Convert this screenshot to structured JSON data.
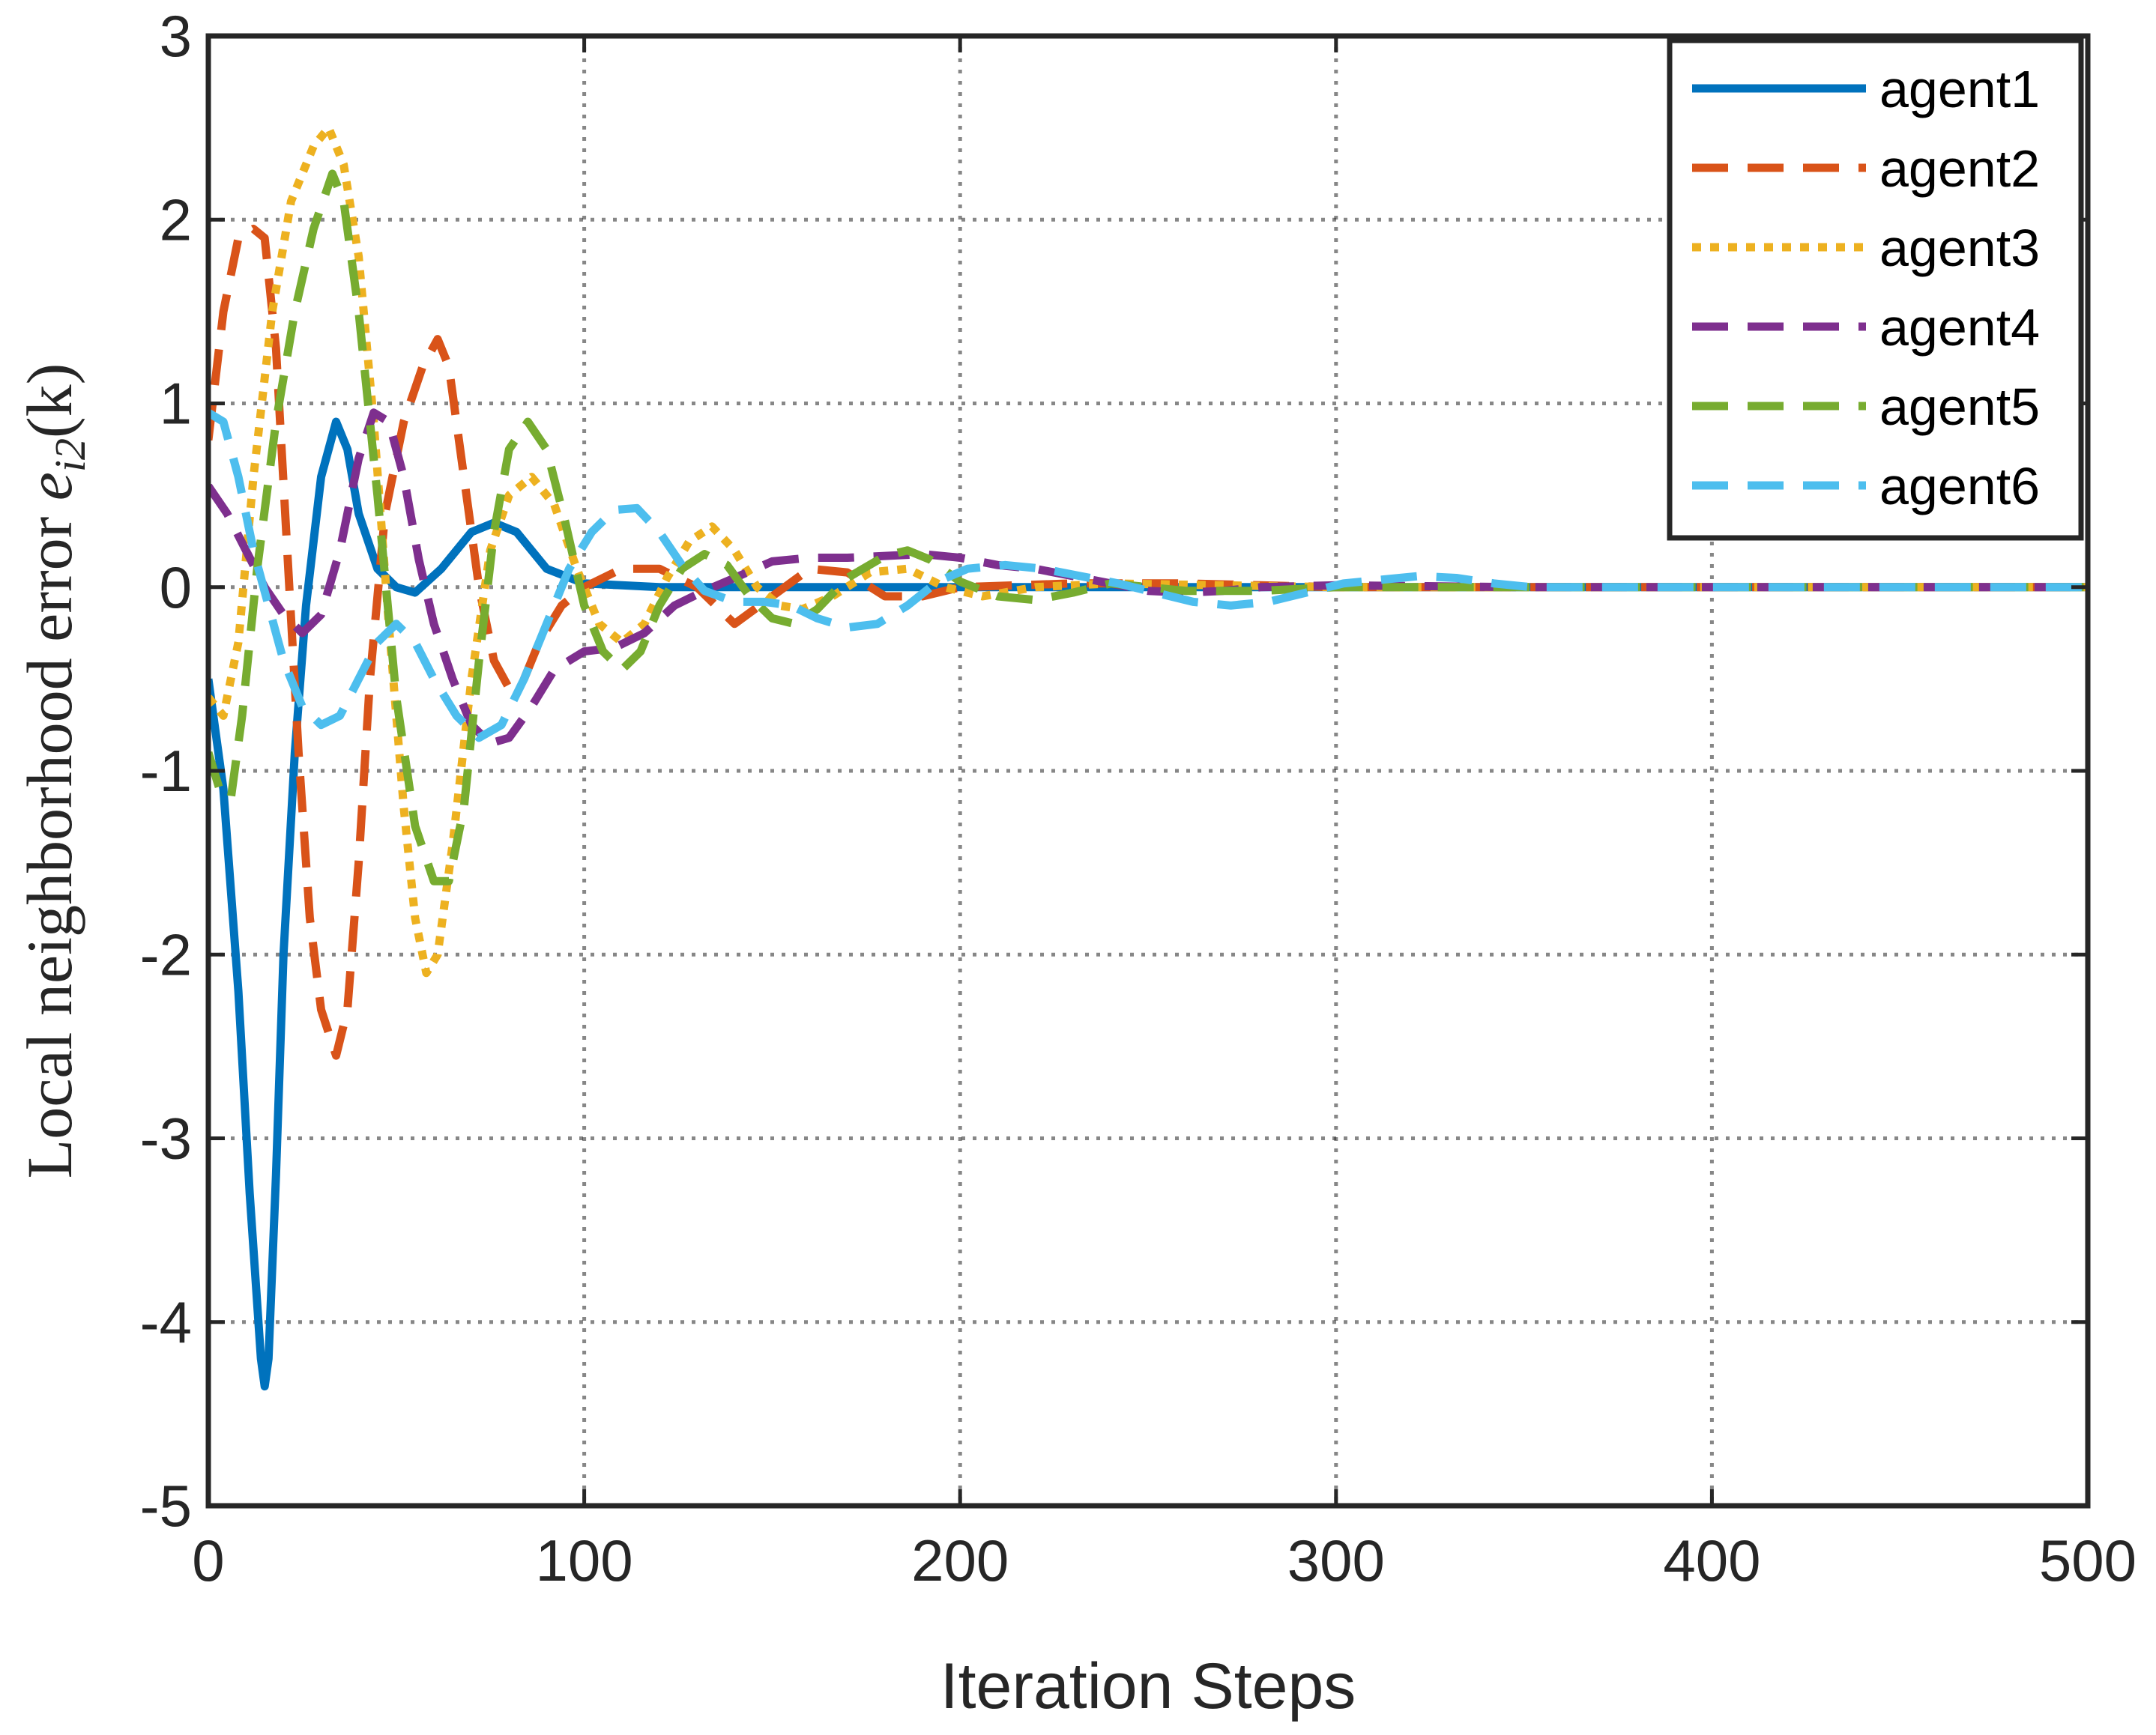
{
  "chart_data": {
    "type": "line",
    "title": "",
    "xlabel": "Iteration Steps",
    "ylabel": {
      "prefix": "Local neighborhood error ",
      "math": "e",
      "subscript": "i2",
      "suffix": "(k)"
    },
    "xlim": [
      0,
      500
    ],
    "ylim": [
      -5,
      3
    ],
    "xticks": [
      0,
      100,
      200,
      300,
      400,
      500
    ],
    "yticks": [
      3,
      2,
      1,
      0,
      -1,
      -2,
      -3,
      -4,
      -5
    ],
    "grid": true,
    "legend_position": "top-right",
    "series": [
      {
        "name": "agent1",
        "color": "#0072BD",
        "style": "solid",
        "points": [
          [
            0,
            -0.5
          ],
          [
            4,
            -1.1
          ],
          [
            8,
            -2.2
          ],
          [
            11,
            -3.3
          ],
          [
            14,
            -4.2
          ],
          [
            15,
            -4.35
          ],
          [
            16,
            -4.2
          ],
          [
            18,
            -3.2
          ],
          [
            20,
            -2.0
          ],
          [
            23,
            -0.9
          ],
          [
            26,
            -0.1
          ],
          [
            30,
            0.6
          ],
          [
            34,
            0.9
          ],
          [
            37,
            0.75
          ],
          [
            40,
            0.4
          ],
          [
            45,
            0.1
          ],
          [
            50,
            0.0
          ],
          [
            55,
            -0.03
          ],
          [
            62,
            0.1
          ],
          [
            70,
            0.3
          ],
          [
            76,
            0.35
          ],
          [
            82,
            0.3
          ],
          [
            90,
            0.1
          ],
          [
            100,
            0.02
          ],
          [
            120,
            0.0
          ],
          [
            160,
            0.0
          ],
          [
            200,
            0.0
          ],
          [
            240,
            0.0
          ],
          [
            300,
            0.0
          ],
          [
            400,
            0.0
          ],
          [
            500,
            0.0
          ]
        ]
      },
      {
        "name": "agent2",
        "color": "#D95319",
        "style": "dashed",
        "points": [
          [
            0,
            0.8
          ],
          [
            4,
            1.5
          ],
          [
            8,
            1.9
          ],
          [
            12,
            1.95
          ],
          [
            15,
            1.9
          ],
          [
            18,
            1.3
          ],
          [
            21,
            0.2
          ],
          [
            24,
            -0.9
          ],
          [
            27,
            -1.8
          ],
          [
            30,
            -2.3
          ],
          [
            34,
            -2.55
          ],
          [
            37,
            -2.3
          ],
          [
            40,
            -1.5
          ],
          [
            43,
            -0.5
          ],
          [
            47,
            0.4
          ],
          [
            52,
            0.9
          ],
          [
            57,
            1.2
          ],
          [
            61,
            1.35
          ],
          [
            64,
            1.2
          ],
          [
            68,
            0.6
          ],
          [
            72,
            0.0
          ],
          [
            76,
            -0.4
          ],
          [
            80,
            -0.55
          ],
          [
            84,
            -0.5
          ],
          [
            88,
            -0.3
          ],
          [
            94,
            -0.1
          ],
          [
            100,
            0.0
          ],
          [
            110,
            0.1
          ],
          [
            120,
            0.1
          ],
          [
            130,
            0.0
          ],
          [
            140,
            -0.2
          ],
          [
            150,
            -0.05
          ],
          [
            160,
            0.1
          ],
          [
            170,
            0.08
          ],
          [
            180,
            -0.05
          ],
          [
            190,
            -0.05
          ],
          [
            200,
            0.0
          ],
          [
            230,
            0.02
          ],
          [
            260,
            0.02
          ],
          [
            300,
            0.0
          ],
          [
            400,
            0.0
          ],
          [
            500,
            0.0
          ]
        ]
      },
      {
        "name": "agent3",
        "color": "#EDB120",
        "style": "dotted",
        "points": [
          [
            0,
            -0.6
          ],
          [
            4,
            -0.7
          ],
          [
            8,
            -0.3
          ],
          [
            12,
            0.6
          ],
          [
            17,
            1.5
          ],
          [
            22,
            2.1
          ],
          [
            28,
            2.4
          ],
          [
            32,
            2.5
          ],
          [
            36,
            2.3
          ],
          [
            40,
            1.8
          ],
          [
            44,
            0.9
          ],
          [
            48,
            -0.2
          ],
          [
            52,
            -1.2
          ],
          [
            55,
            -1.8
          ],
          [
            58,
            -2.1
          ],
          [
            61,
            -2.0
          ],
          [
            65,
            -1.4
          ],
          [
            70,
            -0.5
          ],
          [
            75,
            0.2
          ],
          [
            80,
            0.5
          ],
          [
            86,
            0.6
          ],
          [
            92,
            0.45
          ],
          [
            98,
            0.1
          ],
          [
            104,
            -0.2
          ],
          [
            110,
            -0.3
          ],
          [
            116,
            -0.2
          ],
          [
            122,
            0.05
          ],
          [
            128,
            0.25
          ],
          [
            134,
            0.33
          ],
          [
            140,
            0.2
          ],
          [
            146,
            0.0
          ],
          [
            152,
            -0.1
          ],
          [
            158,
            -0.12
          ],
          [
            166,
            -0.05
          ],
          [
            176,
            0.08
          ],
          [
            186,
            0.1
          ],
          [
            196,
            0.0
          ],
          [
            206,
            -0.05
          ],
          [
            220,
            0.0
          ],
          [
            240,
            0.02
          ],
          [
            300,
            0.0
          ],
          [
            400,
            0.0
          ],
          [
            500,
            0.0
          ]
        ]
      },
      {
        "name": "agent4",
        "color": "#7E2F8E",
        "style": "dashed",
        "points": [
          [
            0,
            0.55
          ],
          [
            5,
            0.4
          ],
          [
            10,
            0.2
          ],
          [
            15,
            0.0
          ],
          [
            20,
            -0.15
          ],
          [
            25,
            -0.25
          ],
          [
            30,
            -0.15
          ],
          [
            35,
            0.2
          ],
          [
            40,
            0.7
          ],
          [
            44,
            0.95
          ],
          [
            48,
            0.9
          ],
          [
            52,
            0.6
          ],
          [
            56,
            0.15
          ],
          [
            60,
            -0.2
          ],
          [
            65,
            -0.5
          ],
          [
            70,
            -0.75
          ],
          [
            75,
            -0.85
          ],
          [
            80,
            -0.82
          ],
          [
            86,
            -0.65
          ],
          [
            92,
            -0.45
          ],
          [
            100,
            -0.35
          ],
          [
            108,
            -0.33
          ],
          [
            116,
            -0.25
          ],
          [
            124,
            -0.1
          ],
          [
            132,
            -0.02
          ],
          [
            140,
            0.05
          ],
          [
            150,
            0.14
          ],
          [
            160,
            0.16
          ],
          [
            170,
            0.16
          ],
          [
            180,
            0.17
          ],
          [
            190,
            0.18
          ],
          [
            200,
            0.16
          ],
          [
            210,
            0.12
          ],
          [
            220,
            0.1
          ],
          [
            230,
            0.06
          ],
          [
            240,
            0.02
          ],
          [
            250,
            -0.02
          ],
          [
            260,
            -0.03
          ],
          [
            270,
            -0.02
          ],
          [
            280,
            0.0
          ],
          [
            300,
            0.01
          ],
          [
            350,
            0.0
          ],
          [
            400,
            0.0
          ],
          [
            500,
            0.0
          ]
        ]
      },
      {
        "name": "agent5",
        "color": "#77AC30",
        "style": "dashed",
        "points": [
          [
            0,
            -0.9
          ],
          [
            3,
            -1.1
          ],
          [
            6,
            -1.15
          ],
          [
            9,
            -0.7
          ],
          [
            13,
            0.1
          ],
          [
            18,
            0.9
          ],
          [
            23,
            1.5
          ],
          [
            28,
            1.95
          ],
          [
            33,
            2.25
          ],
          [
            36,
            2.1
          ],
          [
            40,
            1.5
          ],
          [
            45,
            0.5
          ],
          [
            50,
            -0.6
          ],
          [
            55,
            -1.3
          ],
          [
            60,
            -1.6
          ],
          [
            64,
            -1.6
          ],
          [
            68,
            -1.2
          ],
          [
            72,
            -0.4
          ],
          [
            76,
            0.3
          ],
          [
            80,
            0.75
          ],
          [
            85,
            0.9
          ],
          [
            90,
            0.75
          ],
          [
            95,
            0.35
          ],
          [
            100,
            -0.1
          ],
          [
            105,
            -0.35
          ],
          [
            110,
            -0.45
          ],
          [
            115,
            -0.35
          ],
          [
            120,
            -0.1
          ],
          [
            126,
            0.1
          ],
          [
            132,
            0.18
          ],
          [
            138,
            0.12
          ],
          [
            144,
            -0.05
          ],
          [
            150,
            -0.17
          ],
          [
            156,
            -0.2
          ],
          [
            162,
            -0.12
          ],
          [
            170,
            0.05
          ],
          [
            180,
            0.17
          ],
          [
            186,
            0.2
          ],
          [
            192,
            0.15
          ],
          [
            200,
            0.03
          ],
          [
            210,
            -0.05
          ],
          [
            220,
            -0.07
          ],
          [
            230,
            -0.03
          ],
          [
            240,
            0.02
          ],
          [
            260,
            -0.02
          ],
          [
            280,
            -0.02
          ],
          [
            300,
            0.0
          ],
          [
            400,
            0.0
          ],
          [
            500,
            0.0
          ]
        ]
      },
      {
        "name": "agent6",
        "color": "#4DBEEE",
        "style": "dashed",
        "points": [
          [
            0,
            0.95
          ],
          [
            4,
            0.9
          ],
          [
            8,
            0.6
          ],
          [
            12,
            0.2
          ],
          [
            16,
            -0.1
          ],
          [
            20,
            -0.4
          ],
          [
            25,
            -0.65
          ],
          [
            30,
            -0.75
          ],
          [
            35,
            -0.7
          ],
          [
            40,
            -0.5
          ],
          [
            45,
            -0.3
          ],
          [
            50,
            -0.2
          ],
          [
            55,
            -0.3
          ],
          [
            60,
            -0.5
          ],
          [
            66,
            -0.7
          ],
          [
            72,
            -0.82
          ],
          [
            78,
            -0.75
          ],
          [
            84,
            -0.5
          ],
          [
            90,
            -0.2
          ],
          [
            96,
            0.1
          ],
          [
            102,
            0.3
          ],
          [
            108,
            0.42
          ],
          [
            114,
            0.43
          ],
          [
            120,
            0.3
          ],
          [
            126,
            0.12
          ],
          [
            132,
            -0.02
          ],
          [
            140,
            -0.08
          ],
          [
            148,
            -0.08
          ],
          [
            155,
            -0.1
          ],
          [
            162,
            -0.17
          ],
          [
            170,
            -0.22
          ],
          [
            178,
            -0.2
          ],
          [
            186,
            -0.1
          ],
          [
            194,
            0.03
          ],
          [
            202,
            0.1
          ],
          [
            212,
            0.12
          ],
          [
            222,
            0.1
          ],
          [
            232,
            0.06
          ],
          [
            242,
            0.02
          ],
          [
            252,
            -0.03
          ],
          [
            262,
            -0.08
          ],
          [
            272,
            -0.1
          ],
          [
            282,
            -0.08
          ],
          [
            292,
            -0.03
          ],
          [
            302,
            0.02
          ],
          [
            312,
            0.04
          ],
          [
            322,
            0.06
          ],
          [
            332,
            0.05
          ],
          [
            342,
            0.02
          ],
          [
            352,
            0.0
          ],
          [
            400,
            0.0
          ],
          [
            500,
            0.0
          ]
        ]
      }
    ]
  }
}
